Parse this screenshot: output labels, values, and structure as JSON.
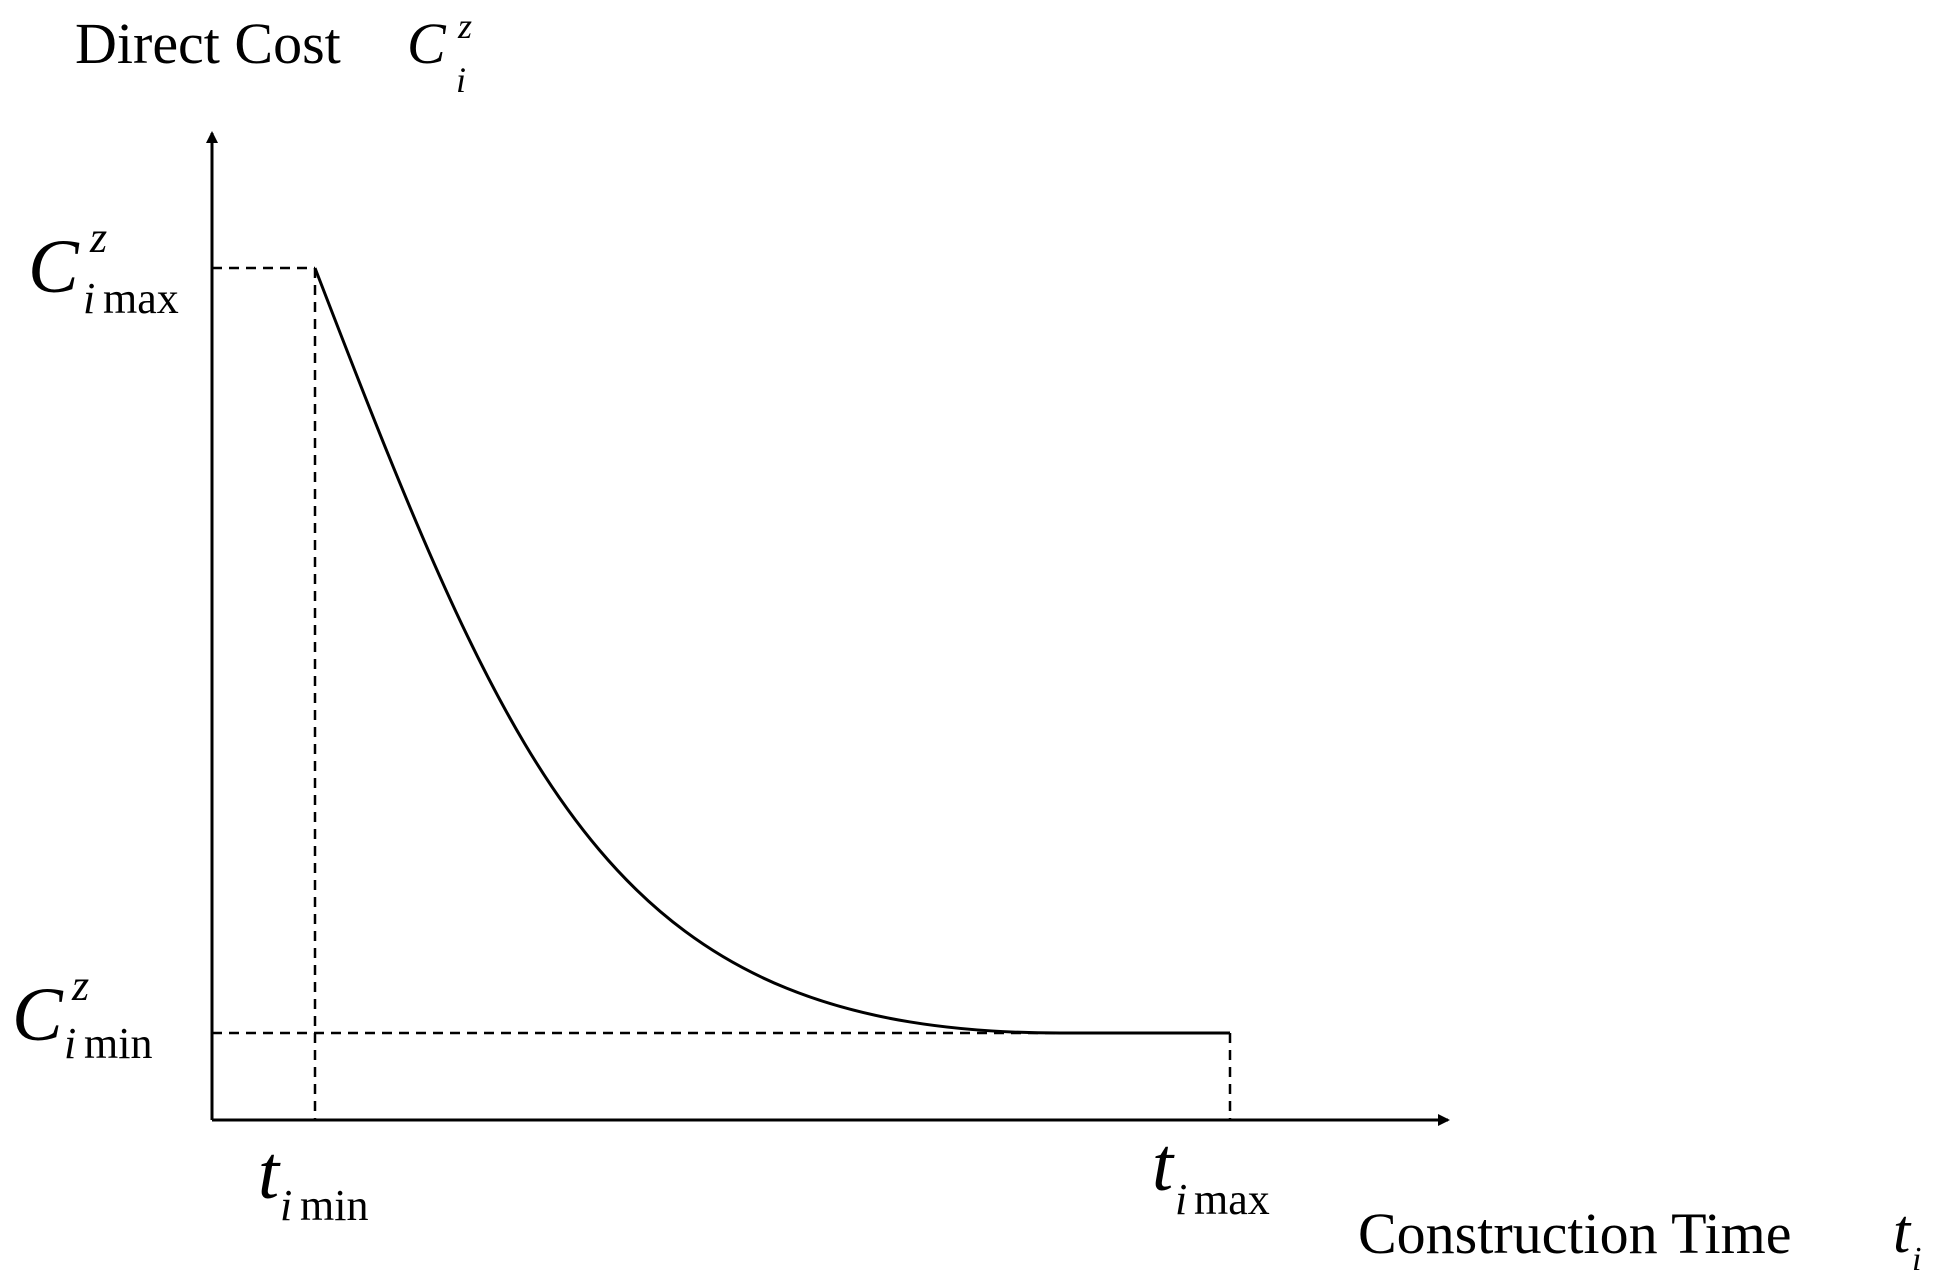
{
  "diagram": {
    "y_axis_label": {
      "text": "Direct Cost",
      "symbol": "C",
      "superscript": "z",
      "subscript": "i"
    },
    "x_axis_label": {
      "text": "Construction Time",
      "symbol": "t",
      "subscript": "i"
    },
    "c_max_label": {
      "symbol": "C",
      "superscript": "z",
      "subscript_italic": "i",
      "subscript_word": "max"
    },
    "c_min_label": {
      "symbol": "C",
      "superscript": "z",
      "subscript_italic": "i",
      "subscript_word": "min"
    },
    "t_min_label": {
      "symbol": "t",
      "subscript_italic": "i",
      "subscript_word": "min"
    },
    "t_max_label": {
      "symbol": "t",
      "subscript_italic": "i",
      "subscript_word": "max"
    },
    "curve": "decreasing convex cost curve from (t_imin, C_imax) to (t_imax, C_imin)",
    "colors": {
      "line": "#000000",
      "background": "#ffffff"
    }
  }
}
